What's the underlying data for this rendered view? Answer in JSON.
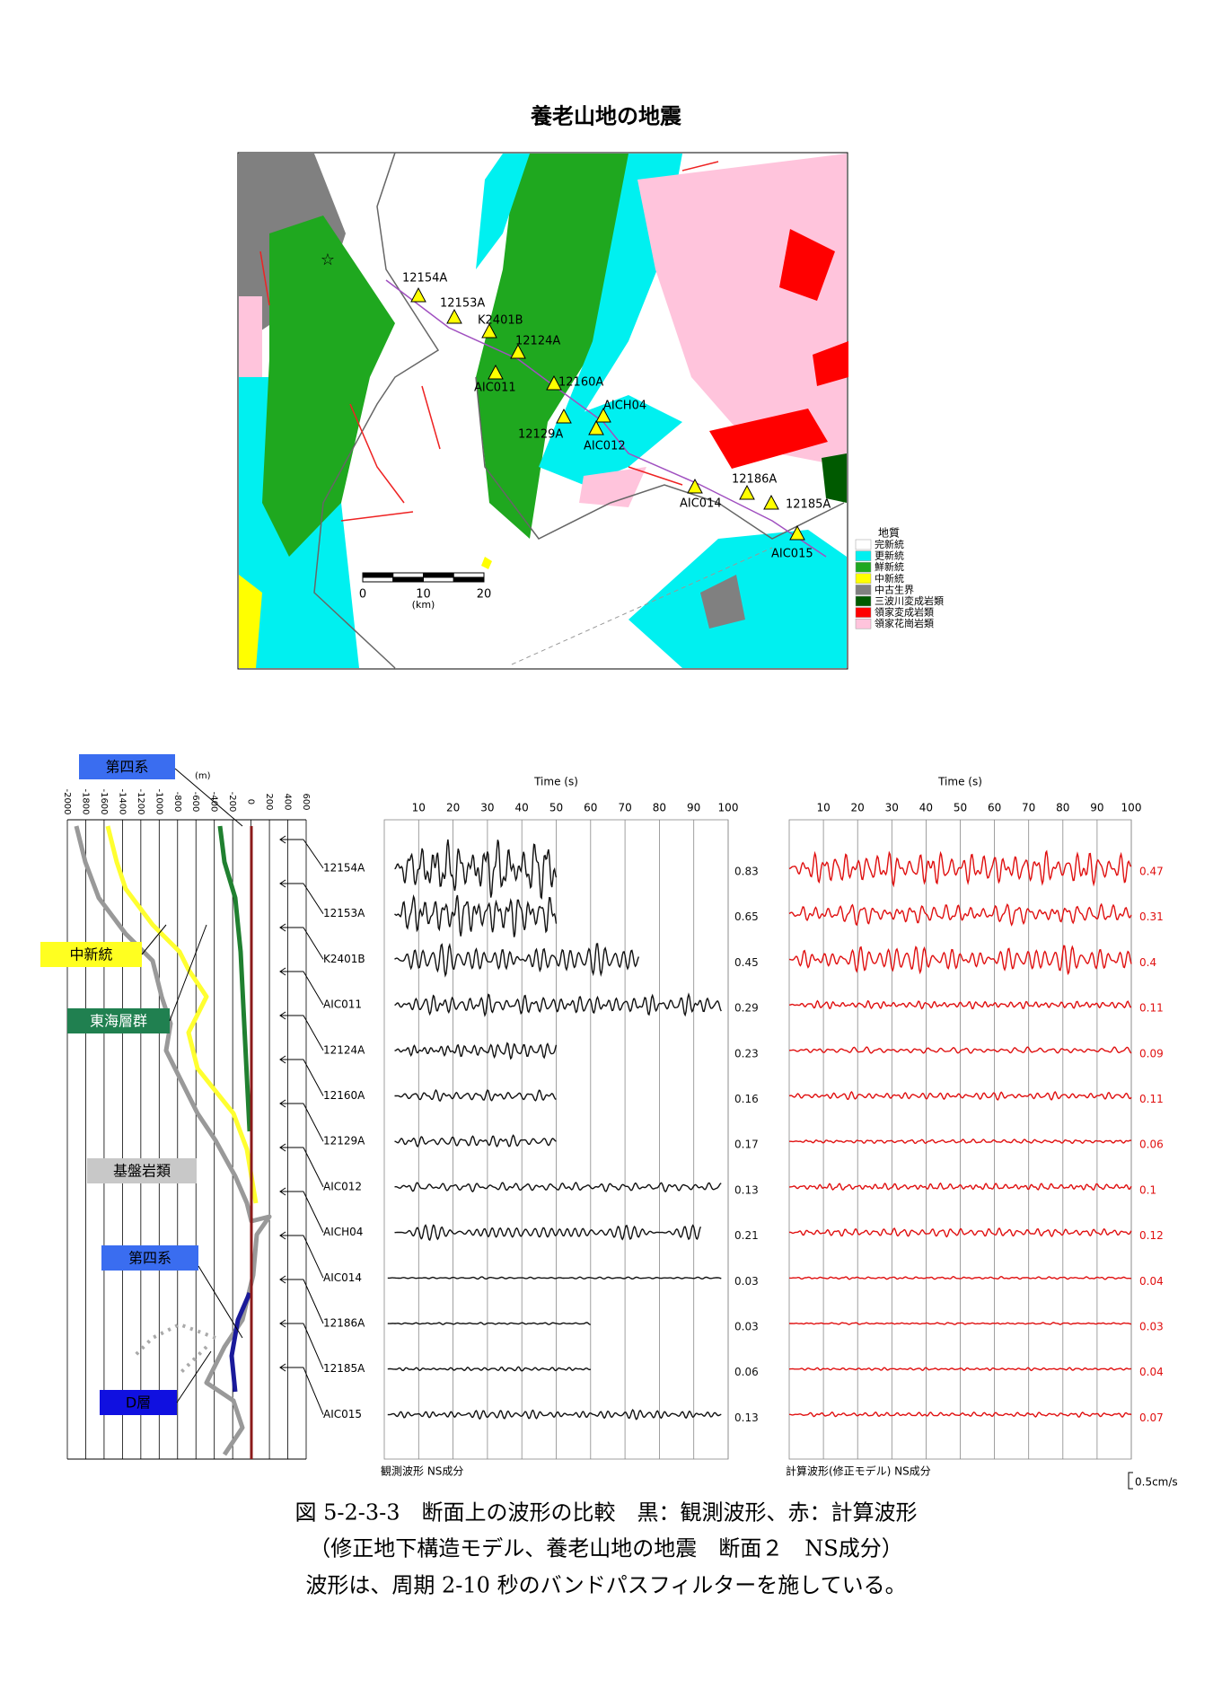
{
  "title": "養老山地の地震",
  "stations": [
    "12154A",
    "12153A",
    "K2401B",
    "AIC011",
    "12124A",
    "12160A",
    "12129A",
    "AIC012",
    "AICH04",
    "AIC014",
    "12186A",
    "12185A",
    "AIC015"
  ],
  "map": {
    "legend": {
      "title": "地質",
      "items": [
        {
          "label": "完新統",
          "color": "#ffffff"
        },
        {
          "label": "更新統",
          "color": "#00f0f0"
        },
        {
          "label": "鮮新統",
          "color": "#1fa81f"
        },
        {
          "label": "中新統",
          "color": "#ffff00"
        },
        {
          "label": "中古生界",
          "color": "#808080"
        },
        {
          "label": "三波川変成岩類",
          "color": "#005a00"
        },
        {
          "label": "領家変成岩類",
          "color": "#ff0000"
        },
        {
          "label": "領家花崗岩類",
          "color": "#ffc4dc"
        }
      ]
    },
    "scale": {
      "ticks": [
        0,
        10,
        20
      ],
      "unit": "(km)"
    }
  },
  "section": {
    "labels": [
      "第四系",
      "中新統",
      "東海層群",
      "基盤岩類",
      "第四系",
      "D層"
    ],
    "unit": "(m)",
    "depth_ticks": [
      -2000,
      -1800,
      -1600,
      -1400,
      -1200,
      -1000,
      -800,
      -600,
      -400,
      -200,
      0,
      200,
      400,
      600
    ]
  },
  "waveforms": {
    "axis_title": "Time (s)",
    "time_ticks": [
      10,
      20,
      30,
      40,
      50,
      60,
      70,
      80,
      90,
      100
    ],
    "observed": {
      "amplitudes": [
        0.83,
        0.65,
        0.45,
        0.29,
        0.23,
        0.16,
        0.17,
        0.13,
        0.21,
        0.03,
        0.03,
        0.06,
        0.13
      ],
      "caption": "観測波形 NS成分"
    },
    "calculated": {
      "amplitudes": [
        0.47,
        0.31,
        0.4,
        0.11,
        0.09,
        0.11,
        0.06,
        0.1,
        0.12,
        0.04,
        0.03,
        0.04,
        0.07
      ],
      "caption": "計算波形(修正モデル) NS成分"
    },
    "scale_label": "0.5cm/s"
  },
  "caption": [
    "図 5-2-3-3　断面上の波形の比較　黒：観測波形、赤：計算波形",
    "（修正地下構造モデル、養老山地の地震　断面２　NS成分）",
    "波形は、周期 2-10 秒のバンドパスフィルターを施している。"
  ]
}
